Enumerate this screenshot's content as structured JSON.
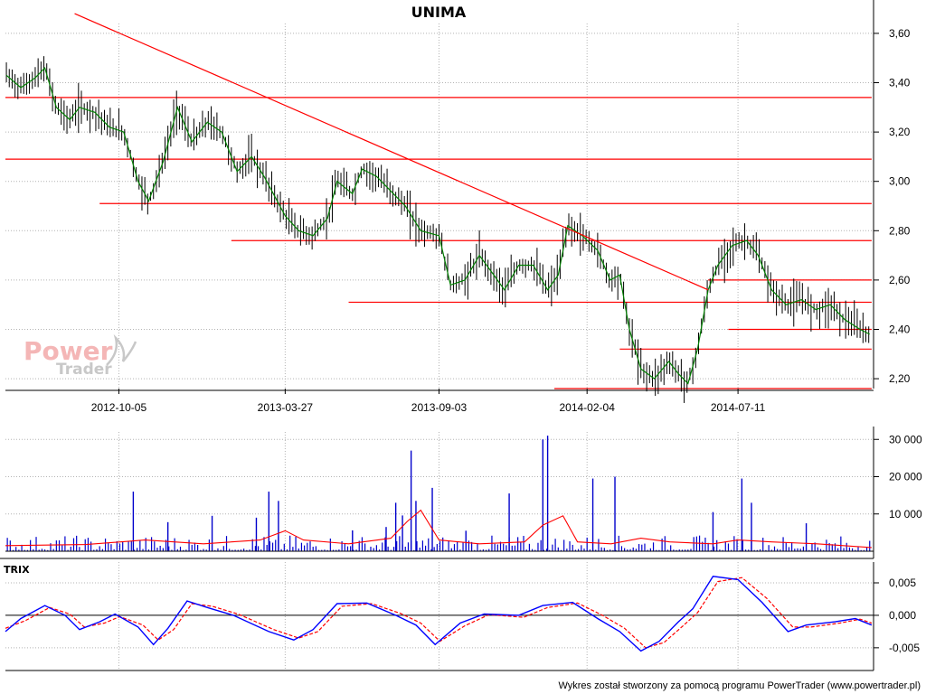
{
  "title": "UNIMA",
  "footer": "Wykres został stworzony za pomocą programu PowerTrader (www.powertrader.pl)",
  "logo": {
    "word1": "Power",
    "word2": "Trader"
  },
  "colors": {
    "candle": "#000000",
    "ma": "#008000",
    "support": "#ff0000",
    "volume": "#0000cc",
    "volume_avg": "#ff0000",
    "trix": "#0000ff",
    "trix_signal": "#ff0000",
    "grid": "#b4b4b4"
  },
  "chart_data": [
    {
      "type": "candlestick",
      "name": "price",
      "title": "UNIMA",
      "ylim": [
        2.16,
        3.64
      ],
      "yticks": [
        2.2,
        2.4,
        2.6,
        2.8,
        3.0,
        3.2,
        3.4,
        3.6
      ],
      "ytick_labels": [
        "2,20",
        "2,40",
        "2,60",
        "2,80",
        "3,00",
        "3,20",
        "3,40",
        "3,60"
      ],
      "xlim": [
        "2012-06-09",
        "2014-11-29"
      ],
      "xticks": [
        "2012-10-05",
        "2013-03-27",
        "2013-09-03",
        "2014-02-04",
        "2014-07-11"
      ],
      "grid": true,
      "moving_average": [
        [
          "2012-06-10",
          3.43
        ],
        [
          "2012-06-25",
          3.38
        ],
        [
          "2012-07-10",
          3.42
        ],
        [
          "2012-07-20",
          3.46
        ],
        [
          "2012-08-01",
          3.3
        ],
        [
          "2012-08-15",
          3.25
        ],
        [
          "2012-08-25",
          3.3
        ],
        [
          "2012-09-10",
          3.28
        ],
        [
          "2012-09-25",
          3.22
        ],
        [
          "2012-10-10",
          3.2
        ],
        [
          "2012-10-25",
          3.0
        ],
        [
          "2012-11-05",
          2.92
        ],
        [
          "2012-11-20",
          3.08
        ],
        [
          "2012-12-05",
          3.3
        ],
        [
          "2012-12-20",
          3.16
        ],
        [
          "2013-01-05",
          3.24
        ],
        [
          "2013-01-20",
          3.2
        ],
        [
          "2013-02-05",
          3.04
        ],
        [
          "2013-02-20",
          3.1
        ],
        [
          "2013-03-05",
          3.02
        ],
        [
          "2013-03-27",
          2.86
        ],
        [
          "2013-04-10",
          2.8
        ],
        [
          "2013-04-25",
          2.78
        ],
        [
          "2013-05-10",
          2.85
        ],
        [
          "2013-05-20",
          3.0
        ],
        [
          "2013-06-05",
          2.95
        ],
        [
          "2013-06-15",
          3.05
        ],
        [
          "2013-06-30",
          3.02
        ],
        [
          "2013-07-15",
          2.96
        ],
        [
          "2013-07-30",
          2.9
        ],
        [
          "2013-08-15",
          2.8
        ],
        [
          "2013-09-03",
          2.78
        ],
        [
          "2013-09-15",
          2.58
        ],
        [
          "2013-09-30",
          2.6
        ],
        [
          "2013-10-15",
          2.7
        ],
        [
          "2013-10-30",
          2.62
        ],
        [
          "2013-11-10",
          2.56
        ],
        [
          "2013-11-25",
          2.66
        ],
        [
          "2013-12-10",
          2.66
        ],
        [
          "2013-12-25",
          2.56
        ],
        [
          "2014-01-05",
          2.62
        ],
        [
          "2014-01-15",
          2.82
        ],
        [
          "2014-01-30",
          2.78
        ],
        [
          "2014-02-15",
          2.72
        ],
        [
          "2014-02-28",
          2.6
        ],
        [
          "2014-03-10",
          2.62
        ],
        [
          "2014-03-20",
          2.4
        ],
        [
          "2014-04-01",
          2.24
        ],
        [
          "2014-04-15",
          2.2
        ],
        [
          "2014-04-30",
          2.27
        ],
        [
          "2014-05-10",
          2.22
        ],
        [
          "2014-05-20",
          2.18
        ],
        [
          "2014-05-30",
          2.32
        ],
        [
          "2014-06-10",
          2.56
        ],
        [
          "2014-06-20",
          2.66
        ],
        [
          "2014-07-05",
          2.74
        ],
        [
          "2014-07-20",
          2.76
        ],
        [
          "2014-08-01",
          2.7
        ],
        [
          "2014-08-15",
          2.56
        ],
        [
          "2014-08-30",
          2.5
        ],
        [
          "2014-09-15",
          2.52
        ],
        [
          "2014-09-30",
          2.48
        ],
        [
          "2014-10-15",
          2.5
        ],
        [
          "2014-10-30",
          2.44
        ],
        [
          "2014-11-15",
          2.4
        ],
        [
          "2014-11-25",
          2.38
        ]
      ],
      "support_lines": [
        {
          "from": "2012-06-09",
          "to": "2014-11-27",
          "y": 3.34
        },
        {
          "from": "2012-06-09",
          "to": "2014-11-27",
          "y": 3.09
        },
        {
          "from": "2012-09-15",
          "to": "2014-11-27",
          "y": 2.91
        },
        {
          "from": "2013-01-30",
          "to": "2014-11-27",
          "y": 2.76
        },
        {
          "from": "2013-06-01",
          "to": "2014-11-27",
          "y": 2.51
        },
        {
          "from": "2014-06-10",
          "to": "2014-11-27",
          "y": 2.6
        },
        {
          "from": "2014-07-01",
          "to": "2014-11-27",
          "y": 2.4
        },
        {
          "from": "2014-03-10",
          "to": "2014-11-27",
          "y": 2.32
        },
        {
          "from": "2014-01-01",
          "to": "2014-11-27",
          "y": 2.16
        }
      ],
      "trend_line": {
        "from": [
          "2012-08-20",
          3.68
        ],
        "to": [
          "2014-06-10",
          2.56
        ]
      }
    },
    {
      "type": "bar",
      "name": "volume",
      "ylim": [
        0,
        32000
      ],
      "yticks": [
        10000,
        20000,
        30000
      ],
      "ytick_labels": [
        "10 000",
        "20 000",
        "30 000"
      ],
      "spikes": [
        [
          "2012-10-20",
          16000
        ],
        [
          "2012-11-25",
          7800
        ],
        [
          "2013-01-10",
          9500
        ],
        [
          "2013-02-25",
          9000
        ],
        [
          "2013-03-10",
          16000
        ],
        [
          "2013-03-20",
          13500
        ],
        [
          "2013-06-05",
          5600
        ],
        [
          "2013-07-10",
          6500
        ],
        [
          "2013-07-20",
          13000
        ],
        [
          "2013-07-27",
          9600
        ],
        [
          "2013-08-05",
          27000
        ],
        [
          "2013-08-10",
          13500
        ],
        [
          "2013-08-27",
          17000
        ],
        [
          "2013-10-01",
          5500
        ],
        [
          "2013-11-15",
          15500
        ],
        [
          "2013-12-20",
          30000
        ],
        [
          "2013-12-25",
          31000
        ],
        [
          "2014-02-10",
          19500
        ],
        [
          "2014-03-05",
          20000
        ],
        [
          "2014-06-15",
          10500
        ],
        [
          "2014-07-15",
          19500
        ],
        [
          "2014-07-25",
          13000
        ],
        [
          "2014-09-20",
          7500
        ]
      ],
      "average": [
        [
          "2012-06-09",
          1500
        ],
        [
          "2012-09-01",
          1800
        ],
        [
          "2012-11-01",
          3000
        ],
        [
          "2013-01-01",
          2000
        ],
        [
          "2013-03-01",
          3000
        ],
        [
          "2013-03-27",
          5500
        ],
        [
          "2013-04-15",
          3000
        ],
        [
          "2013-06-01",
          2000
        ],
        [
          "2013-07-15",
          3500
        ],
        [
          "2013-08-01",
          8000
        ],
        [
          "2013-08-15",
          11000
        ],
        [
          "2013-09-03",
          3000
        ],
        [
          "2013-10-15",
          2000
        ],
        [
          "2013-12-01",
          2500
        ],
        [
          "2013-12-20",
          7000
        ],
        [
          "2014-01-10",
          9500
        ],
        [
          "2014-01-25",
          2500
        ],
        [
          "2014-03-01",
          2000
        ],
        [
          "2014-04-01",
          3500
        ],
        [
          "2014-05-01",
          2500
        ],
        [
          "2014-06-15",
          2000
        ],
        [
          "2014-07-11",
          3000
        ],
        [
          "2014-08-15",
          2500
        ],
        [
          "2014-10-01",
          2000
        ],
        [
          "2014-11-27",
          1000
        ]
      ]
    },
    {
      "type": "line",
      "name": "trix",
      "title": "TRIX",
      "ylim": [
        -0.0085,
        0.0082
      ],
      "yticks": [
        -0.005,
        0.0,
        0.005
      ],
      "ytick_labels": [
        "-0,005",
        "0,000",
        "0,005"
      ],
      "series": [
        {
          "values": [
            [
              "2012-06-09",
              -0.0025
            ],
            [
              "2012-06-25",
              -0.0005
            ],
            [
              "2012-07-20",
              0.0015
            ],
            [
              "2012-08-10",
              0.0
            ],
            [
              "2012-08-25",
              -0.0022
            ],
            [
              "2012-09-15",
              -0.001
            ],
            [
              "2012-10-01",
              0.0002
            ],
            [
              "2012-10-25",
              -0.0018
            ],
            [
              "2012-11-10",
              -0.0045
            ],
            [
              "2012-11-25",
              -0.002
            ],
            [
              "2012-12-15",
              0.0022
            ],
            [
              "2013-01-05",
              0.0012
            ],
            [
              "2013-02-01",
              0.0
            ],
            [
              "2013-03-10",
              -0.0025
            ],
            [
              "2013-04-05",
              -0.0038
            ],
            [
              "2013-04-25",
              -0.0022
            ],
            [
              "2013-05-20",
              0.0018
            ],
            [
              "2013-06-20",
              0.0019
            ],
            [
              "2013-07-20",
              0.0
            ],
            [
              "2013-08-10",
              -0.0015
            ],
            [
              "2013-08-30",
              -0.0045
            ],
            [
              "2013-09-25",
              -0.0012
            ],
            [
              "2013-10-20",
              0.0002
            ],
            [
              "2013-11-25",
              -0.0
            ],
            [
              "2013-12-20",
              0.0015
            ],
            [
              "2014-01-20",
              0.002
            ],
            [
              "2014-02-15",
              -0.0005
            ],
            [
              "2014-03-10",
              -0.0025
            ],
            [
              "2014-04-01",
              -0.0055
            ],
            [
              "2014-04-20",
              -0.004
            ],
            [
              "2014-05-10",
              -0.001
            ],
            [
              "2014-05-25",
              0.001
            ],
            [
              "2014-06-15",
              0.006
            ],
            [
              "2014-07-11",
              0.0055
            ],
            [
              "2014-08-05",
              0.002
            ],
            [
              "2014-09-01",
              -0.0025
            ],
            [
              "2014-09-20",
              -0.0015
            ],
            [
              "2014-10-20",
              -0.001
            ],
            [
              "2014-11-10",
              -0.0005
            ],
            [
              "2014-11-27",
              -0.0015
            ]
          ]
        },
        {
          "values": [
            [
              "2012-06-09",
              -0.002
            ],
            [
              "2012-06-30",
              -0.0008
            ],
            [
              "2012-07-25",
              0.0012
            ],
            [
              "2012-08-15",
              0.0002
            ],
            [
              "2012-08-30",
              -0.0018
            ],
            [
              "2012-09-20",
              -0.0012
            ],
            [
              "2012-10-06",
              -0.0002
            ],
            [
              "2012-10-30",
              -0.0015
            ],
            [
              "2012-11-15",
              -0.0038
            ],
            [
              "2012-12-01",
              -0.0022
            ],
            [
              "2012-12-20",
              0.0018
            ],
            [
              "2013-01-10",
              0.0014
            ],
            [
              "2013-02-06",
              0.0002
            ],
            [
              "2013-03-15",
              -0.0022
            ],
            [
              "2013-04-10",
              -0.0035
            ],
            [
              "2013-04-30",
              -0.0025
            ],
            [
              "2013-05-25",
              0.0014
            ],
            [
              "2013-06-25",
              0.0018
            ],
            [
              "2013-07-25",
              0.0003
            ],
            [
              "2013-08-15",
              -0.0012
            ],
            [
              "2013-09-04",
              -0.004
            ],
            [
              "2013-09-30",
              -0.0016
            ],
            [
              "2013-10-25",
              0.0001
            ],
            [
              "2013-11-30",
              -0.0003
            ],
            [
              "2013-12-25",
              0.0012
            ],
            [
              "2014-01-25",
              0.0019
            ],
            [
              "2014-02-20",
              -0.0
            ],
            [
              "2014-03-15",
              -0.002
            ],
            [
              "2014-04-06",
              -0.005
            ],
            [
              "2014-04-25",
              -0.0042
            ],
            [
              "2014-05-15",
              -0.0016
            ],
            [
              "2014-05-30",
              0.0004
            ],
            [
              "2014-06-20",
              0.0052
            ],
            [
              "2014-07-15",
              0.0058
            ],
            [
              "2014-08-10",
              0.0026
            ],
            [
              "2014-09-06",
              -0.0018
            ],
            [
              "2014-09-25",
              -0.0018
            ],
            [
              "2014-10-25",
              -0.0012
            ],
            [
              "2014-11-15",
              -0.0006
            ],
            [
              "2014-11-27",
              -0.0012
            ]
          ]
        }
      ]
    }
  ]
}
